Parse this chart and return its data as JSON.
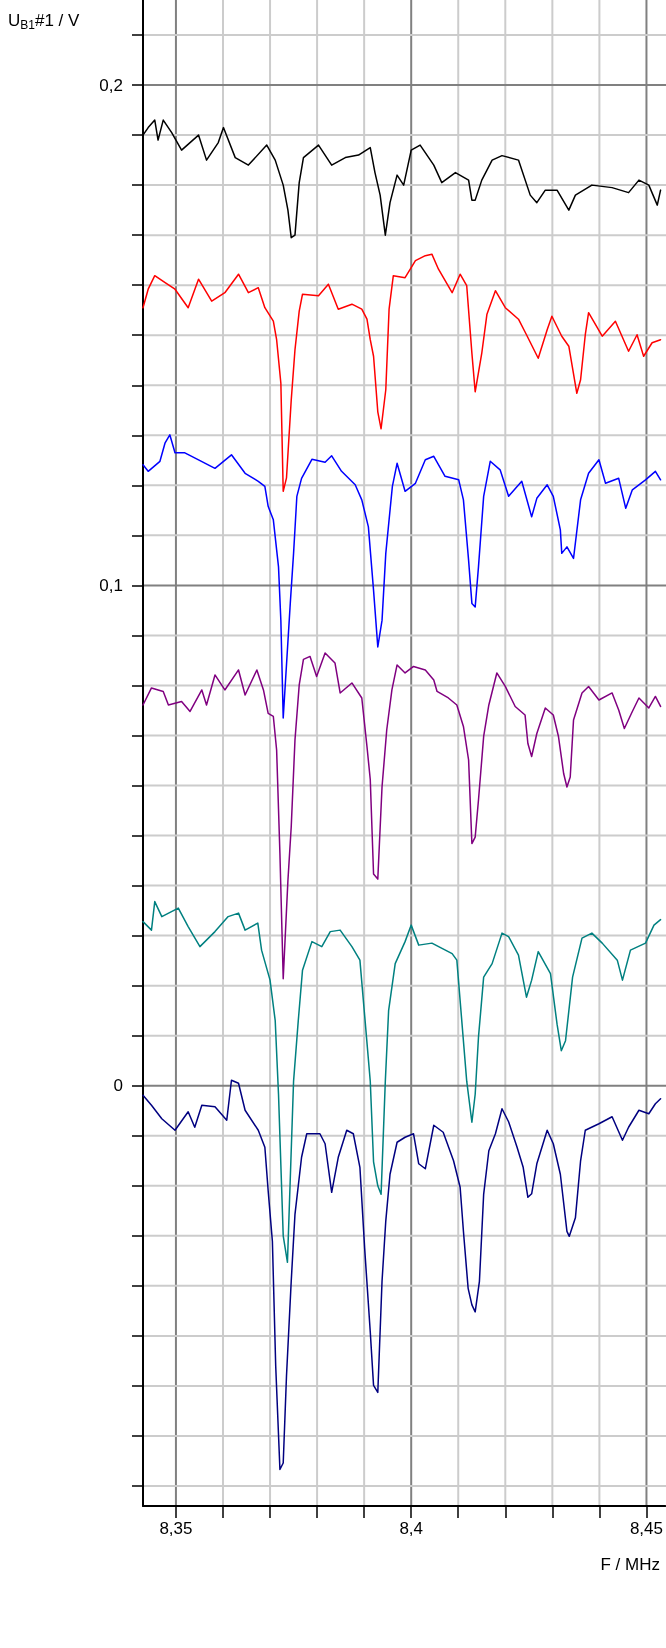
{
  "chart_data": {
    "type": "line",
    "xlabel": "F / MHz",
    "ylabel": "U$_{B1}$#1 / V",
    "xlim": [
      8.343,
      8.454
    ],
    "ylim": [
      -0.084,
      0.217
    ],
    "xticks": [
      {
        "value": 8.35,
        "label": "8,35"
      },
      {
        "value": 8.36,
        "label": null
      },
      {
        "value": 8.37,
        "label": null
      },
      {
        "value": 8.38,
        "label": null
      },
      {
        "value": 8.39,
        "label": null
      },
      {
        "value": 8.4,
        "label": "8,4"
      },
      {
        "value": 8.41,
        "label": null
      },
      {
        "value": 8.42,
        "label": null
      },
      {
        "value": 8.43,
        "label": null
      },
      {
        "value": 8.44,
        "label": null
      },
      {
        "value": 8.45,
        "label": "8,45"
      }
    ],
    "yticks": [
      {
        "value": -0.08,
        "label": null
      },
      {
        "value": -0.07,
        "label": null
      },
      {
        "value": -0.06,
        "label": null
      },
      {
        "value": -0.05,
        "label": null
      },
      {
        "value": -0.04,
        "label": null
      },
      {
        "value": -0.03,
        "label": null
      },
      {
        "value": -0.02,
        "label": null
      },
      {
        "value": -0.01,
        "label": null
      },
      0,
      {
        "value": 0.01,
        "label": null
      },
      {
        "value": 0.02,
        "label": null
      },
      {
        "value": 0.03,
        "label": null
      },
      {
        "value": 0.04,
        "label": null
      },
      {
        "value": 0.05,
        "label": null
      },
      {
        "value": 0.06,
        "label": null
      },
      {
        "value": 0.07,
        "label": null
      },
      {
        "value": 0.08,
        "label": null
      },
      {
        "value": 0.09,
        "label": null
      },
      {
        "value": 0.1,
        "label": "0,1"
      },
      {
        "value": 0.11,
        "label": null
      },
      {
        "value": 0.12,
        "label": null
      },
      {
        "value": 0.13,
        "label": null
      },
      {
        "value": 0.14,
        "label": null
      },
      {
        "value": 0.15,
        "label": null
      },
      {
        "value": 0.16,
        "label": null
      },
      {
        "value": 0.17,
        "label": null
      },
      {
        "value": 0.18,
        "label": null
      },
      {
        "value": 0.19,
        "label": null
      },
      {
        "value": 0.2,
        "label": "0,2"
      },
      {
        "value": 0.21,
        "label": null
      }
    ],
    "grid": true,
    "marker": "none",
    "line_style": "solid",
    "series": [
      {
        "color": "#000000",
        "x": [
          8.343,
          8.3441,
          8.3455,
          8.3462,
          8.3473,
          8.3491,
          8.3512,
          8.3548,
          8.3565,
          8.359,
          8.3601,
          8.3626,
          8.3654,
          8.3693,
          8.3711,
          8.3728,
          8.3738,
          8.3745,
          8.3753,
          8.3762,
          8.3771,
          8.3803,
          8.3831,
          8.386,
          8.3888,
          8.3913,
          8.3923,
          8.3934,
          8.3945,
          8.3955,
          8.397,
          8.3984,
          8.4,
          8.4019,
          8.4048,
          8.4065,
          8.4094,
          8.4122,
          8.4129,
          8.4136,
          8.415,
          8.4172,
          8.4193,
          8.4228,
          8.4253,
          8.4267,
          8.4285,
          8.431,
          8.4335,
          8.4349,
          8.4384,
          8.4427,
          8.4462,
          8.4484,
          8.4505,
          8.4523,
          8.453
        ],
        "values": [
          0.19,
          0.1915,
          0.193,
          0.189,
          0.193,
          0.1905,
          0.187,
          0.19,
          0.185,
          0.1885,
          0.1915,
          0.1855,
          0.184,
          0.188,
          0.185,
          0.18,
          0.175,
          0.1695,
          0.17,
          0.1805,
          0.1855,
          0.188,
          0.184,
          0.1855,
          0.186,
          0.1875,
          0.1825,
          0.178,
          0.17,
          0.1765,
          0.182,
          0.18,
          0.187,
          0.188,
          0.184,
          0.1805,
          0.1825,
          0.181,
          0.177,
          0.177,
          0.181,
          0.185,
          0.1859,
          0.185,
          0.178,
          0.1765,
          0.179,
          0.179,
          0.175,
          0.178,
          0.18,
          0.1795,
          0.1785,
          0.181,
          0.18,
          0.176,
          0.179
        ]
      },
      {
        "color": "#ff0000",
        "x": [
          8.343,
          8.3441,
          8.3455,
          8.3477,
          8.3498,
          8.3526,
          8.3548,
          8.3576,
          8.3604,
          8.3633,
          8.3654,
          8.3675,
          8.3689,
          8.3707,
          8.3714,
          8.3723,
          8.3728,
          8.3735,
          8.3745,
          8.3753,
          8.3762,
          8.3769,
          8.3803,
          8.3824,
          8.3845,
          8.3874,
          8.3895,
          8.3906,
          8.3913,
          8.392,
          8.3929,
          8.3936,
          8.3946,
          8.3953,
          8.3962,
          8.3987,
          8.4009,
          8.403,
          8.4044,
          8.4058,
          8.4087,
          8.4104,
          8.4118,
          8.4129,
          8.4136,
          8.415,
          8.4161,
          8.4179,
          8.42,
          8.4228,
          8.4245,
          8.427,
          8.4289,
          8.4299,
          8.432,
          8.4335,
          8.4352,
          8.436,
          8.437,
          8.4377,
          8.4406,
          8.4434,
          8.4462,
          8.448,
          8.4494,
          8.4512,
          8.453
        ],
        "values": [
          0.1555,
          0.1592,
          0.1619,
          0.1605,
          0.1592,
          0.1555,
          0.1612,
          0.1568,
          0.1585,
          0.1622,
          0.1585,
          0.1595,
          0.1555,
          0.1528,
          0.1491,
          0.1404,
          0.1188,
          0.1215,
          0.137,
          0.1471,
          0.1548,
          0.1582,
          0.1579,
          0.1602,
          0.1552,
          0.1562,
          0.1552,
          0.1532,
          0.1491,
          0.1458,
          0.1347,
          0.1313,
          0.1391,
          0.1552,
          0.1619,
          0.1615,
          0.1649,
          0.1659,
          0.1662,
          0.1632,
          0.1585,
          0.1622,
          0.1599,
          0.1464,
          0.1387,
          0.1464,
          0.1542,
          0.1589,
          0.1555,
          0.1532,
          0.1501,
          0.1454,
          0.1511,
          0.1538,
          0.1498,
          0.1478,
          0.1384,
          0.1411,
          0.1501,
          0.1545,
          0.1498,
          0.1528,
          0.1468,
          0.1501,
          0.1458,
          0.1485,
          0.1491
        ]
      },
      {
        "color": "#0000ff",
        "x": [
          8.343,
          8.3441,
          8.3466,
          8.3477,
          8.3487,
          8.3498,
          8.3519,
          8.3548,
          8.3583,
          8.3618,
          8.3647,
          8.3675,
          8.3689,
          8.3696,
          8.3707,
          8.3718,
          8.3723,
          8.3728,
          8.3743,
          8.375,
          8.3757,
          8.3767,
          8.3789,
          8.3817,
          8.3831,
          8.3852,
          8.3881,
          8.3895,
          8.3909,
          8.392,
          8.3929,
          8.3938,
          8.3946,
          8.396,
          8.397,
          8.3987,
          8.4009,
          8.403,
          8.4048,
          8.4072,
          8.4101,
          8.4111,
          8.4122,
          8.4129,
          8.4136,
          8.4143,
          8.4154,
          8.4168,
          8.4189,
          8.4207,
          8.4235,
          8.4256,
          8.4267,
          8.4289,
          8.4302,
          8.4317,
          8.432,
          8.4331,
          8.4345,
          8.436,
          8.4377,
          8.4399,
          8.4413,
          8.4441,
          8.4456,
          8.447,
          8.4498,
          8.4519,
          8.453
        ],
        "values": [
          0.1241,
          0.1228,
          0.1248,
          0.1285,
          0.1301,
          0.1265,
          0.1265,
          0.1251,
          0.1234,
          0.1261,
          0.1224,
          0.1208,
          0.1198,
          0.1158,
          0.1131,
          0.1037,
          0.093,
          0.0735,
          0.0964,
          0.1064,
          0.1178,
          0.1214,
          0.1252,
          0.1246,
          0.1259,
          0.1228,
          0.1201,
          0.1171,
          0.1117,
          0.099,
          0.0877,
          0.093,
          0.1064,
          0.1198,
          0.1244,
          0.1188,
          0.1204,
          0.1251,
          0.1258,
          0.1218,
          0.1211,
          0.1171,
          0.105,
          0.0964,
          0.0957,
          0.1037,
          0.1178,
          0.1248,
          0.1231,
          0.1178,
          0.1208,
          0.1137,
          0.1174,
          0.1201,
          0.1178,
          0.1111,
          0.1064,
          0.1077,
          0.1054,
          0.1171,
          0.1224,
          0.1251,
          0.1204,
          0.1214,
          0.1154,
          0.1191,
          0.1211,
          0.1228,
          0.1211
        ]
      },
      {
        "color": "#800080",
        "x": [
          8.343,
          8.3448,
          8.3473,
          8.3484,
          8.3512,
          8.353,
          8.3555,
          8.3565,
          8.3583,
          8.3604,
          8.3633,
          8.3647,
          8.3672,
          8.3686,
          8.3696,
          8.3707,
          8.3714,
          8.3721,
          8.3728,
          8.3738,
          8.3745,
          8.3753,
          8.3762,
          8.3771,
          8.3785,
          8.3799,
          8.3817,
          8.3838,
          8.3849,
          8.3874,
          8.3895,
          8.3906,
          8.3913,
          8.392,
          8.3929,
          8.3938,
          8.3948,
          8.3959,
          8.397,
          8.3987,
          8.4005,
          8.403,
          8.4048,
          8.4055,
          8.4079,
          8.4097,
          8.4111,
          8.4122,
          8.4129,
          8.4136,
          8.4143,
          8.4154,
          8.4165,
          8.4182,
          8.42,
          8.4221,
          8.4242,
          8.4248,
          8.4256,
          8.4267,
          8.4285,
          8.4302,
          8.4313,
          8.4324,
          8.4331,
          8.4338,
          8.4345,
          8.4363,
          8.4377,
          8.4399,
          8.4427,
          8.4441,
          8.4453,
          8.447,
          8.4484,
          8.4505,
          8.4519,
          8.453
        ],
        "values": [
          0.0761,
          0.0795,
          0.0788,
          0.0761,
          0.0768,
          0.0748,
          0.0791,
          0.0761,
          0.0821,
          0.0791,
          0.0831,
          0.0781,
          0.0831,
          0.0791,
          0.0744,
          0.0738,
          0.0671,
          0.0464,
          0.0214,
          0.041,
          0.0517,
          0.0691,
          0.0801,
          0.0852,
          0.0858,
          0.0818,
          0.0865,
          0.0845,
          0.0785,
          0.0805,
          0.0775,
          0.0678,
          0.0612,
          0.0423,
          0.0413,
          0.0597,
          0.0711,
          0.0791,
          0.0841,
          0.0825,
          0.0838,
          0.0831,
          0.0811,
          0.0788,
          0.0775,
          0.0761,
          0.0718,
          0.0651,
          0.0484,
          0.0497,
          0.0571,
          0.0698,
          0.0761,
          0.0825,
          0.0798,
          0.0758,
          0.0741,
          0.0684,
          0.0658,
          0.0704,
          0.0755,
          0.0741,
          0.0698,
          0.0624,
          0.0597,
          0.0617,
          0.0731,
          0.0785,
          0.0798,
          0.0771,
          0.0785,
          0.0751,
          0.0714,
          0.0748,
          0.0775,
          0.0755,
          0.0778,
          0.0758
        ]
      },
      {
        "color": "#008080",
        "x": [
          8.343,
          8.3448,
          8.3455,
          8.347,
          8.3505,
          8.3526,
          8.3551,
          8.3583,
          8.3611,
          8.3633,
          8.3647,
          8.3674,
          8.3682,
          8.37,
          8.3711,
          8.3718,
          8.3728,
          8.3737,
          8.375,
          8.376,
          8.3769,
          8.3789,
          8.381,
          8.3828,
          8.3849,
          8.3874,
          8.3891,
          8.3902,
          8.3913,
          8.392,
          8.3929,
          8.3936,
          8.3945,
          8.3952,
          8.3966,
          8.3987,
          8.4,
          8.4016,
          8.4044,
          8.4087,
          8.4097,
          8.4104,
          8.4118,
          8.4129,
          8.4136,
          8.4143,
          8.4154,
          8.4172,
          8.4193,
          8.4207,
          8.4228,
          8.4245,
          8.4256,
          8.427,
          8.4296,
          8.431,
          8.4319,
          8.4328,
          8.4343,
          8.4363,
          8.4384,
          8.4406,
          8.4438,
          8.4449,
          8.4466,
          8.4498,
          8.4516,
          8.453
        ],
        "values": [
          0.0328,
          0.0311,
          0.0368,
          0.0338,
          0.0355,
          0.0318,
          0.0278,
          0.0308,
          0.0338,
          0.0345,
          0.0311,
          0.0325,
          0.0271,
          0.0211,
          0.013,
          -0.0017,
          -0.03,
          -0.0353,
          0.0009,
          0.013,
          0.0231,
          0.0288,
          0.0278,
          0.0308,
          0.0311,
          0.0278,
          0.0251,
          0.013,
          0.0009,
          -0.0152,
          -0.02,
          -0.0217,
          0.0009,
          0.015,
          0.0244,
          0.0288,
          0.0321,
          0.0281,
          0.0285,
          0.0264,
          0.0251,
          0.017,
          0.0009,
          -0.0073,
          -0.0017,
          0.0097,
          0.0217,
          0.0244,
          0.0305,
          0.0298,
          0.0261,
          0.0177,
          0.0211,
          0.0268,
          0.0224,
          0.0123,
          0.007,
          0.009,
          0.0217,
          0.0295,
          0.0305,
          0.0285,
          0.0251,
          0.0211,
          0.0271,
          0.0285,
          0.0321,
          0.0332
        ]
      },
      {
        "color": "#000080",
        "x": [
          8.343,
          8.3448,
          8.347,
          8.3498,
          8.3526,
          8.354,
          8.3555,
          8.3583,
          8.3608,
          8.3618,
          8.3633,
          8.3647,
          8.3675,
          8.3689,
          8.3696,
          8.3705,
          8.3712,
          8.3721,
          8.3728,
          8.3735,
          8.3745,
          8.3753,
          8.3767,
          8.3778,
          8.3806,
          8.3817,
          8.3831,
          8.3845,
          8.3863,
          8.3877,
          8.3891,
          8.3901,
          8.3913,
          8.392,
          8.3929,
          8.3938,
          8.3946,
          8.3955,
          8.397,
          8.3987,
          8.4005,
          8.4016,
          8.403,
          8.4048,
          8.4068,
          8.409,
          8.4104,
          8.4111,
          8.4121,
          8.4129,
          8.4136,
          8.4145,
          8.4154,
          8.4165,
          8.4179,
          8.4193,
          8.4207,
          8.4225,
          8.4238,
          8.4248,
          8.4256,
          8.4267,
          8.4289,
          8.4302,
          8.4317,
          8.4331,
          8.4336,
          8.4349,
          8.436,
          8.437,
          8.4399,
          8.4427,
          8.4449,
          8.4462,
          8.4484,
          8.4505,
          8.4519,
          8.453
        ],
        "values": [
          -0.0019,
          -0.0039,
          -0.0066,
          -0.0089,
          -0.0052,
          -0.0083,
          -0.0039,
          -0.0042,
          -0.0069,
          0.0011,
          0.0005,
          -0.0049,
          -0.0089,
          -0.0123,
          -0.021,
          -0.0311,
          -0.0559,
          -0.0767,
          -0.0754,
          -0.0579,
          -0.0391,
          -0.0257,
          -0.0143,
          -0.0096,
          -0.0096,
          -0.0116,
          -0.0213,
          -0.0143,
          -0.0089,
          -0.0096,
          -0.0163,
          -0.0324,
          -0.0492,
          -0.0599,
          -0.0613,
          -0.0391,
          -0.027,
          -0.0177,
          -0.0113,
          -0.0103,
          -0.0096,
          -0.0156,
          -0.0166,
          -0.0079,
          -0.0093,
          -0.015,
          -0.0203,
          -0.0291,
          -0.0405,
          -0.0438,
          -0.0452,
          -0.0391,
          -0.0217,
          -0.013,
          -0.0096,
          -0.0046,
          -0.0072,
          -0.0123,
          -0.0163,
          -0.0223,
          -0.0216,
          -0.0156,
          -0.0089,
          -0.0116,
          -0.0177,
          -0.0291,
          -0.0301,
          -0.0264,
          -0.015,
          -0.0089,
          -0.0076,
          -0.0062,
          -0.0109,
          -0.0083,
          -0.0049,
          -0.0056,
          -0.0036,
          -0.0026
        ]
      }
    ]
  }
}
